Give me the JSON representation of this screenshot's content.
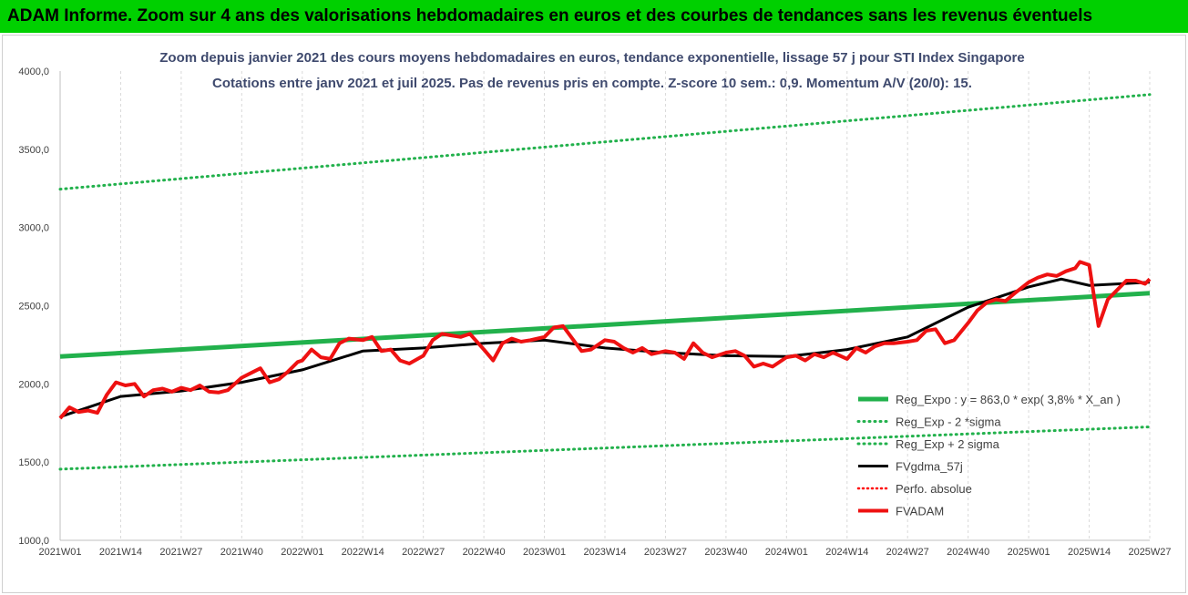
{
  "header": {
    "title": "ADAM Informe. Zoom sur 4 ans des valorisations hebdomadaires en euros et des courbes de tendances sans les revenus éventuels"
  },
  "colors": {
    "header_bg": "#00d000",
    "reg_expo": "#22b14c",
    "reg_band": "#22b14c",
    "ma": "#000000",
    "perf": "#ff0000",
    "fvadam": "#ee1111"
  },
  "chart_data": {
    "type": "line",
    "title": "Zoom depuis janvier 2021 des cours moyens hebdomadaires en euros, tendance exponentielle, lissage 57 j pour STI Index Singapore",
    "subtitle": "Cotations entre janv 2021 et juil 2025. Pas de revenus pris en compte. Z-score 10 sem.: 0,9. Momentum A/V (20/0): 15.",
    "x_ticks": [
      "2021W01",
      "2021W14",
      "2021W27",
      "2021W40",
      "2022W01",
      "2022W14",
      "2022W27",
      "2022W40",
      "2023W01",
      "2023W14",
      "2023W27",
      "2023W40",
      "2024W01",
      "2024W14",
      "2024W27",
      "2024W40",
      "2025W01",
      "2025W14",
      "2025W27"
    ],
    "y_ticks": [
      "1000,0",
      "1500,0",
      "2000,0",
      "2500,0",
      "3000,0",
      "3500,0",
      "4000,0"
    ],
    "ylim": [
      1000,
      4000
    ],
    "grid": "vertical",
    "legend_position": "bottom-right",
    "series": [
      {
        "name": "Reg_Expo : y = 863,0 * exp( 3,8% * X_an )",
        "style": "solid-thick",
        "x": [
          "2021W01",
          "2025W27"
        ],
        "values": [
          2175,
          2580
        ]
      },
      {
        "name": "Reg_Exp - 2 *sigma",
        "style": "dotted",
        "x": [
          "2021W01",
          "2025W27"
        ],
        "values": [
          1455,
          1725
        ]
      },
      {
        "name": "Reg_Exp + 2 sigma",
        "style": "dotted",
        "x": [
          "2021W01",
          "2025W27"
        ],
        "values": [
          3245,
          3850
        ]
      },
      {
        "name": "FVgdma_57j",
        "style": "solid",
        "x": [
          "2021W01",
          "2021W14",
          "2021W27",
          "2021W40",
          "2022W01",
          "2022W14",
          "2022W27",
          "2022W40",
          "2023W01",
          "2023W14",
          "2023W27",
          "2023W40",
          "2024W01",
          "2024W14",
          "2024W27",
          "2024W40",
          "2025W01",
          "2025W08",
          "2025W14",
          "2025W27"
        ],
        "values": [
          1790,
          1920,
          1955,
          2010,
          2090,
          2210,
          2230,
          2260,
          2280,
          2230,
          2200,
          2180,
          2175,
          2220,
          2300,
          2490,
          2620,
          2670,
          2630,
          2650
        ]
      },
      {
        "name": "Perfo. absolue",
        "style": "dotted-red",
        "x": [],
        "values": []
      },
      {
        "name": "FVADAM",
        "style": "solid-thick-red",
        "x": [
          "2021W01",
          "2021W03",
          "2021W05",
          "2021W07",
          "2021W09",
          "2021W11",
          "2021W13",
          "2021W15",
          "2021W17",
          "2021W19",
          "2021W21",
          "2021W23",
          "2021W25",
          "2021W27",
          "2021W29",
          "2021W31",
          "2021W33",
          "2021W35",
          "2021W37",
          "2021W40",
          "2021W42",
          "2021W44",
          "2021W46",
          "2021W48",
          "2021W50",
          "2021W52",
          "2022W01",
          "2022W03",
          "2022W05",
          "2022W07",
          "2022W09",
          "2022W11",
          "2022W14",
          "2022W16",
          "2022W18",
          "2022W20",
          "2022W22",
          "2022W24",
          "2022W27",
          "2022W29",
          "2022W31",
          "2022W33",
          "2022W35",
          "2022W37",
          "2022W40",
          "2022W42",
          "2022W44",
          "2022W46",
          "2022W48",
          "2022W50",
          "2023W01",
          "2023W03",
          "2023W05",
          "2023W07",
          "2023W09",
          "2023W11",
          "2023W14",
          "2023W16",
          "2023W18",
          "2023W20",
          "2023W22",
          "2023W24",
          "2023W27",
          "2023W29",
          "2023W31",
          "2023W33",
          "2023W35",
          "2023W37",
          "2023W40",
          "2023W42",
          "2023W44",
          "2023W46",
          "2023W48",
          "2023W50",
          "2024W01",
          "2024W03",
          "2024W05",
          "2024W07",
          "2024W09",
          "2024W11",
          "2024W14",
          "2024W16",
          "2024W18",
          "2024W20",
          "2024W22",
          "2024W24",
          "2024W27",
          "2024W29",
          "2024W31",
          "2024W33",
          "2024W35",
          "2024W37",
          "2024W40",
          "2024W42",
          "2024W44",
          "2024W46",
          "2024W48",
          "2024W50",
          "2025W01",
          "2025W03",
          "2025W05",
          "2025W07",
          "2025W09",
          "2025W11",
          "2025W12",
          "2025W14",
          "2025W16",
          "2025W18",
          "2025W20",
          "2025W22",
          "2025W24",
          "2025W26",
          "2025W27"
        ],
        "values": [
          1780,
          1850,
          1820,
          1830,
          1815,
          1930,
          2010,
          1990,
          2000,
          1920,
          1960,
          1970,
          1950,
          1975,
          1960,
          1990,
          1950,
          1945,
          1960,
          2040,
          2070,
          2100,
          2010,
          2030,
          2080,
          2140,
          2150,
          2220,
          2170,
          2160,
          2260,
          2290,
          2280,
          2300,
          2210,
          2220,
          2150,
          2130,
          2180,
          2280,
          2320,
          2310,
          2300,
          2320,
          2220,
          2150,
          2260,
          2290,
          2270,
          2280,
          2300,
          2360,
          2370,
          2290,
          2210,
          2220,
          2280,
          2270,
          2230,
          2200,
          2230,
          2190,
          2210,
          2200,
          2160,
          2260,
          2200,
          2170,
          2200,
          2210,
          2180,
          2110,
          2130,
          2110,
          2170,
          2180,
          2150,
          2190,
          2170,
          2200,
          2160,
          2230,
          2200,
          2240,
          2260,
          2260,
          2270,
          2280,
          2340,
          2350,
          2260,
          2280,
          2390,
          2470,
          2520,
          2540,
          2530,
          2580,
          2650,
          2680,
          2700,
          2690,
          2720,
          2740,
          2780,
          2760,
          2370,
          2540,
          2600,
          2660,
          2660,
          2640,
          2670
        ]
      }
    ]
  }
}
